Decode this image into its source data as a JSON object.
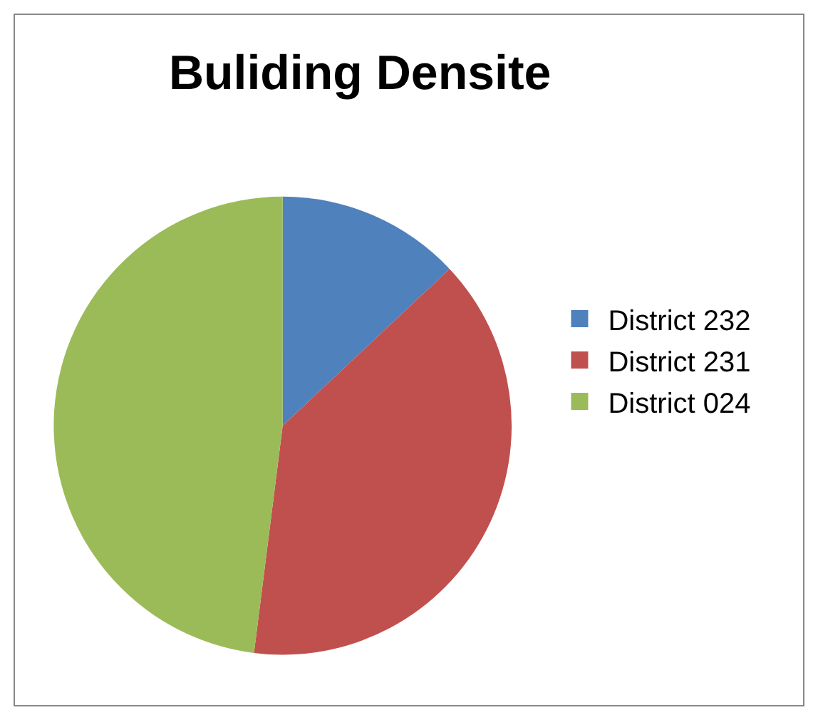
{
  "chart_data": {
    "type": "pie",
    "title": "Buliding Densite",
    "categories": [
      "District 232",
      "District 231",
      "District 024"
    ],
    "values": [
      13,
      39,
      48
    ],
    "colors": [
      "#4f81bd",
      "#c0504d",
      "#9bbb59"
    ],
    "legend": "right"
  }
}
